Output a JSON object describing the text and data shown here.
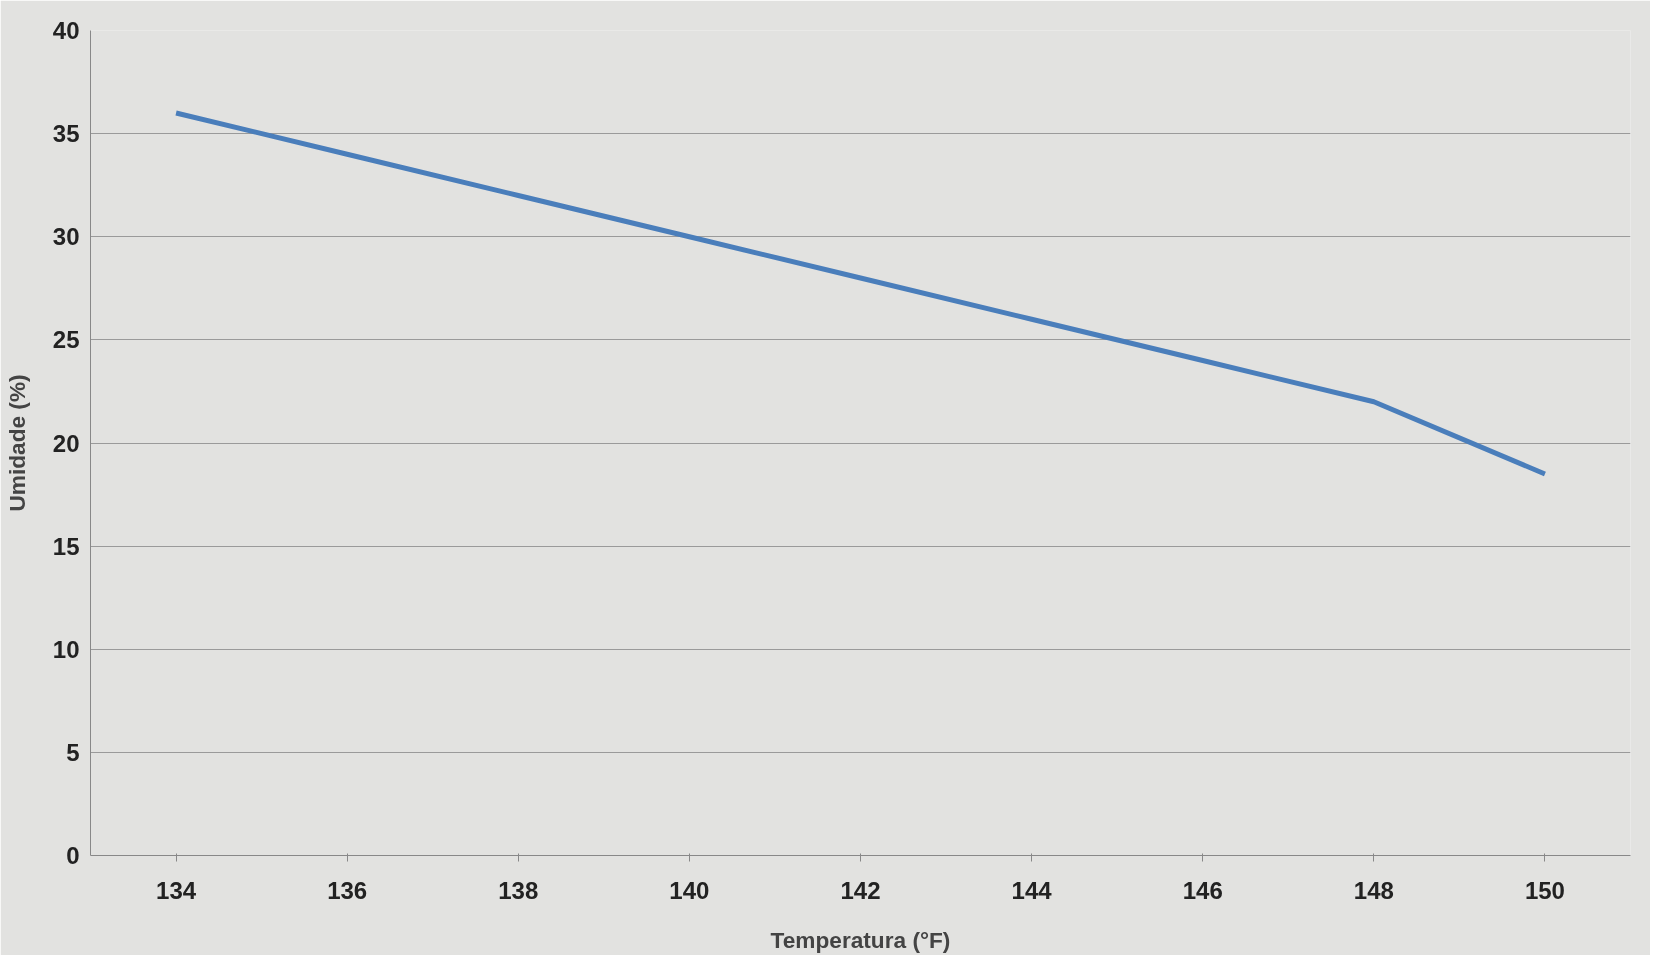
{
  "chart_data": {
    "type": "line",
    "xlabel": "Temperatura (°F)",
    "ylabel": "Umidade (%)",
    "categories": [
      "134",
      "136",
      "138",
      "140",
      "142",
      "144",
      "146",
      "148",
      "150"
    ],
    "series": [
      {
        "color": "#4a7ebb",
        "values": [
          36,
          34,
          32,
          30,
          28,
          26,
          24,
          22,
          18.5
        ]
      }
    ],
    "ylim": [
      0,
      40
    ],
    "yticks": [
      0,
      5,
      10,
      15,
      20,
      25,
      30,
      35,
      40
    ],
    "grid": "y",
    "marker": "none",
    "line_style": "solid"
  }
}
